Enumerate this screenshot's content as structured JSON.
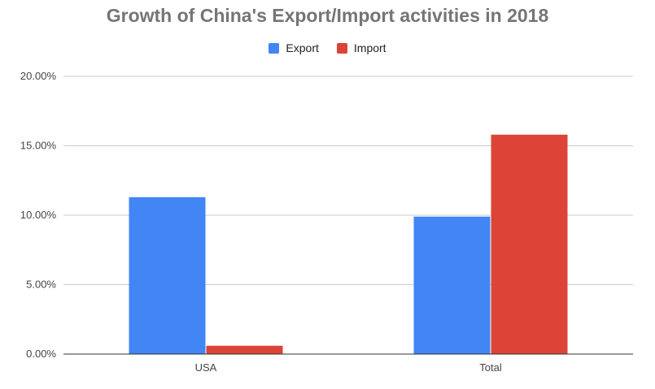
{
  "chart_data": {
    "type": "bar",
    "title": "Growth of China's Export/Import activities in 2018",
    "categories": [
      "USA",
      "Total"
    ],
    "series": [
      {
        "name": "Export",
        "values": [
          11.3,
          9.9
        ],
        "color": "#4285f4"
      },
      {
        "name": "Import",
        "values": [
          0.6,
          15.8
        ],
        "color": "#db4437"
      }
    ],
    "xlabel": "",
    "ylabel": "",
    "ylim": [
      0,
      20
    ],
    "yticks": [
      {
        "value": 0,
        "label": "0.00%"
      },
      {
        "value": 5,
        "label": "5.00%"
      },
      {
        "value": 10,
        "label": "10.00%"
      },
      {
        "value": 15,
        "label": "15.00%"
      },
      {
        "value": 20,
        "label": "20.00%"
      }
    ],
    "grid": true,
    "legend_position": "top"
  }
}
